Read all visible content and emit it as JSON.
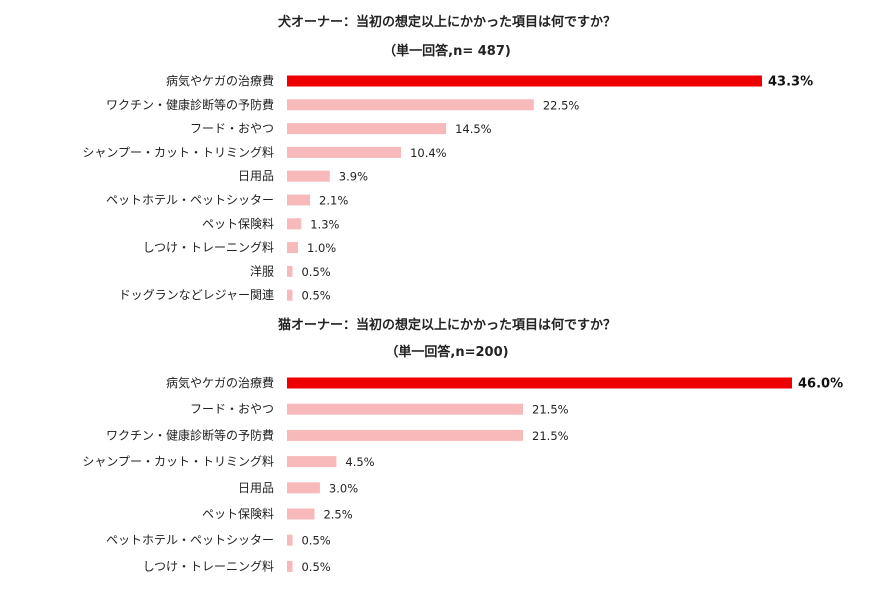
{
  "chart_data": [
    {
      "type": "bar",
      "orientation": "horizontal",
      "title": "犬オーナー：当初の想定以上にかかった項目は何ですか？",
      "subtitle": "（単一回答,n= 487)",
      "categories": [
        "病気やケガの治療費",
        "ワクチン・健康診断等の予防費",
        "フード・おやつ",
        "シャンプー・カット・トリミング料",
        "日用品",
        "ペットホテル・ペットシッター",
        "ペット保険料",
        "しつけ・トレーニング料",
        "洋服",
        "ドッグランなどレジャー関連"
      ],
      "values": [
        43.3,
        22.5,
        14.5,
        10.4,
        3.9,
        2.1,
        1.3,
        1.0,
        0.5,
        0.5
      ],
      "value_labels": [
        "43.3%",
        "22.5%",
        "14.5%",
        "10.4%",
        "3.9%",
        "2.1%",
        "1.3%",
        "1.0%",
        "0.5%",
        "0.5%"
      ],
      "xlim": [
        0,
        50
      ],
      "grid": false,
      "colors": {
        "highlight": "#ee0000",
        "bar": "#f7b9b9"
      }
    },
    {
      "type": "bar",
      "orientation": "horizontal",
      "title": "猫オーナー：当初の想定以上にかかった項目は何ですか？",
      "subtitle": "（単一回答,n=200)",
      "categories": [
        "病気やケガの治療費",
        "フード・おやつ",
        "ワクチン・健康診断等の予防費",
        "シャンプー・カット・トリミング料",
        "日用品",
        "ペット保険料",
        "ペットホテル・ペットシッター",
        "しつけ・トレーニング料"
      ],
      "values": [
        46.0,
        21.5,
        21.5,
        4.5,
        3.0,
        2.5,
        0.5,
        0.5
      ],
      "value_labels": [
        "46.0%",
        "21.5%",
        "21.5%",
        "4.5%",
        "3.0%",
        "2.5%",
        "0.5%",
        "0.5%"
      ],
      "xlim": [
        0,
        50
      ],
      "grid": false,
      "colors": {
        "highlight": "#ee0000",
        "bar": "#f7b9b9"
      }
    }
  ]
}
